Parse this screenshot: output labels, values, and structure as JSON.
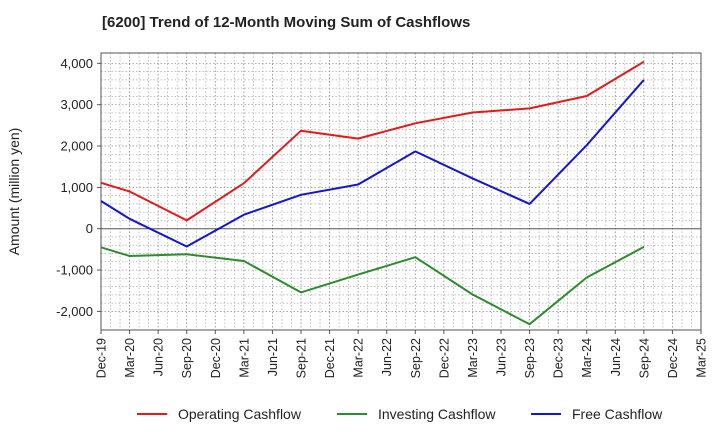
{
  "chart_data": {
    "type": "line",
    "title": "[6200]  Trend of 12-Month Moving Sum of Cashflows",
    "xlabel": "",
    "ylabel": "Amount (million yen)",
    "ylim": [
      -2450,
      4250
    ],
    "yticks": [
      4000,
      3000,
      2000,
      1000,
      0,
      -1000,
      -2000
    ],
    "ytick_labels": [
      "4,000",
      "3,000",
      "2,000",
      "1,000",
      "0",
      "-1,000",
      "-2,000"
    ],
    "categories": [
      "Dec-19",
      "Mar-20",
      "Jun-20",
      "Sep-20",
      "Dec-20",
      "Mar-21",
      "Jun-21",
      "Sep-21",
      "Dec-21",
      "Mar-22",
      "Jun-22",
      "Sep-22",
      "Dec-22",
      "Mar-23",
      "Jun-23",
      "Sep-23",
      "Dec-23",
      "Mar-24",
      "Jun-24",
      "Sep-24",
      "Dec-24",
      "Mar-25"
    ],
    "grid": true,
    "legend_position": "bottom",
    "series": [
      {
        "name": "Operating Cashflow",
        "color": "#e31a1c",
        "values": [
          1110,
          900,
          null,
          200,
          null,
          1100,
          null,
          2370,
          null,
          2180,
          null,
          2550,
          null,
          2810,
          null,
          2910,
          null,
          3210,
          null,
          4040,
          null,
          null
        ]
      },
      {
        "name": "Investing Cashflow",
        "color": "#2e8b2e",
        "values": [
          -450,
          -660,
          null,
          -620,
          null,
          -780,
          null,
          -1540,
          null,
          -1110,
          null,
          -690,
          null,
          -1590,
          null,
          -2310,
          null,
          -1180,
          null,
          -440,
          null,
          null
        ]
      },
      {
        "name": "Free Cashflow",
        "color": "#1414d2",
        "values": [
          670,
          240,
          null,
          -430,
          null,
          340,
          null,
          820,
          null,
          1070,
          null,
          1870,
          null,
          1220,
          null,
          600,
          null,
          2020,
          null,
          3600,
          null,
          null
        ]
      }
    ]
  }
}
